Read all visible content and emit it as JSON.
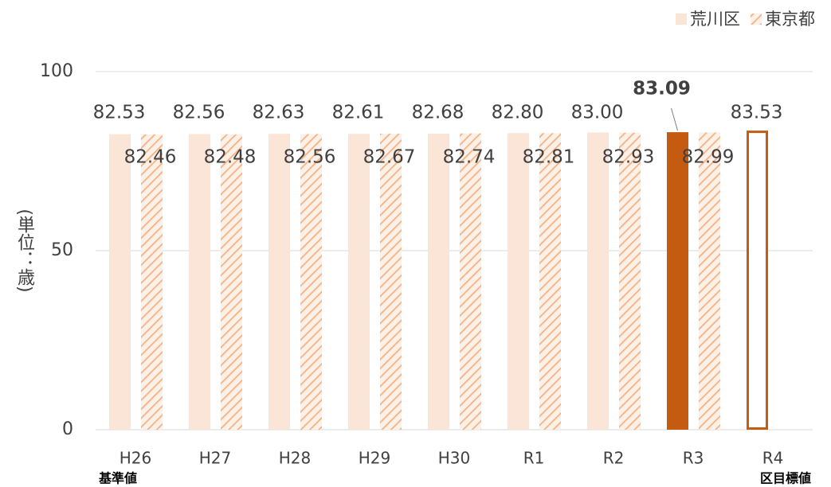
{
  "chart_data": {
    "type": "bar",
    "y_axis_label": "(単位：歳)",
    "categories": [
      "H26",
      "H27",
      "H28",
      "H29",
      "H30",
      "R1",
      "R2",
      "R3",
      "R4"
    ],
    "series": [
      {
        "name": "荒川区",
        "color": "#fbe5d6",
        "colors": [
          "#fbe5d6",
          "#fbe5d6",
          "#fbe5d6",
          "#fbe5d6",
          "#fbe5d6",
          "#fbe5d6",
          "#fbe5d6",
          "#c55a11",
          "none"
        ],
        "edge_colors": [
          "none",
          "none",
          "none",
          "none",
          "none",
          "none",
          "none",
          "none",
          "#c55a11"
        ],
        "label_weights": [
          "normal",
          "normal",
          "normal",
          "normal",
          "normal",
          "normal",
          "normal",
          "bold",
          "normal"
        ],
        "values": [
          82.53,
          82.56,
          82.63,
          82.61,
          82.68,
          82.8,
          83.0,
          83.09,
          83.53
        ],
        "value_labels": [
          "82.53",
          "82.56",
          "82.63",
          "82.61",
          "82.68",
          "82.80",
          "83.00",
          "83.09",
          "83.53"
        ]
      },
      {
        "name": "東京都",
        "color": "#f4b183",
        "pattern": "hatch",
        "values": [
          82.46,
          82.48,
          82.56,
          82.67,
          82.74,
          82.81,
          82.93,
          82.99,
          null
        ],
        "value_labels": [
          "82.46",
          "82.48",
          "82.56",
          "82.67",
          "82.74",
          "82.81",
          "82.93",
          "82.99",
          null
        ]
      }
    ],
    "annotations": [
      "基準値",
      "区目標値"
    ],
    "ylim": [
      0,
      100
    ],
    "yticks": [
      0,
      50,
      100
    ],
    "grid": true,
    "legend": "top-right"
  }
}
